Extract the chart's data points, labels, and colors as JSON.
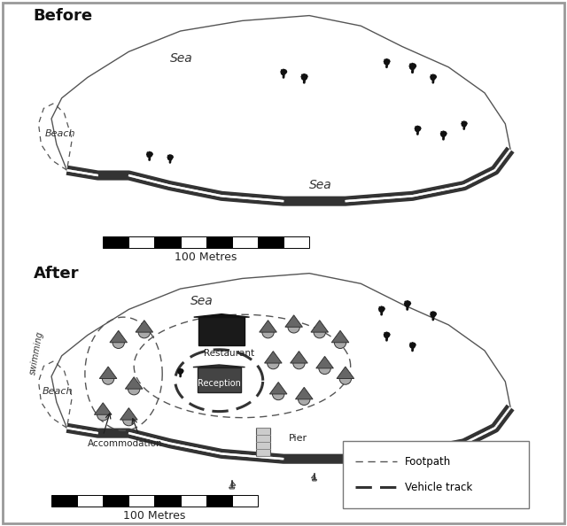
{
  "title_before": "Before",
  "title_after": "After",
  "bg_color": "#ffffff",
  "panel_bg": "#f8f8f8",
  "island_fill": "#ffffff",
  "shore_color": "#444444",
  "scale_label": "100 Metres",
  "legend_footpath": "Footpath",
  "legend_vehicle": "Vehicle track",
  "beach_label": "Beach",
  "swimming_label": "swimming",
  "restaurant_label": "Restaurant",
  "reception_label": "Reception",
  "accommodation_label": "Accommodation",
  "pier_label": "Pier",
  "sea_label_top_before": "Sea",
  "sea_label_bot_before": "Sea",
  "sea_label_after": "Sea"
}
